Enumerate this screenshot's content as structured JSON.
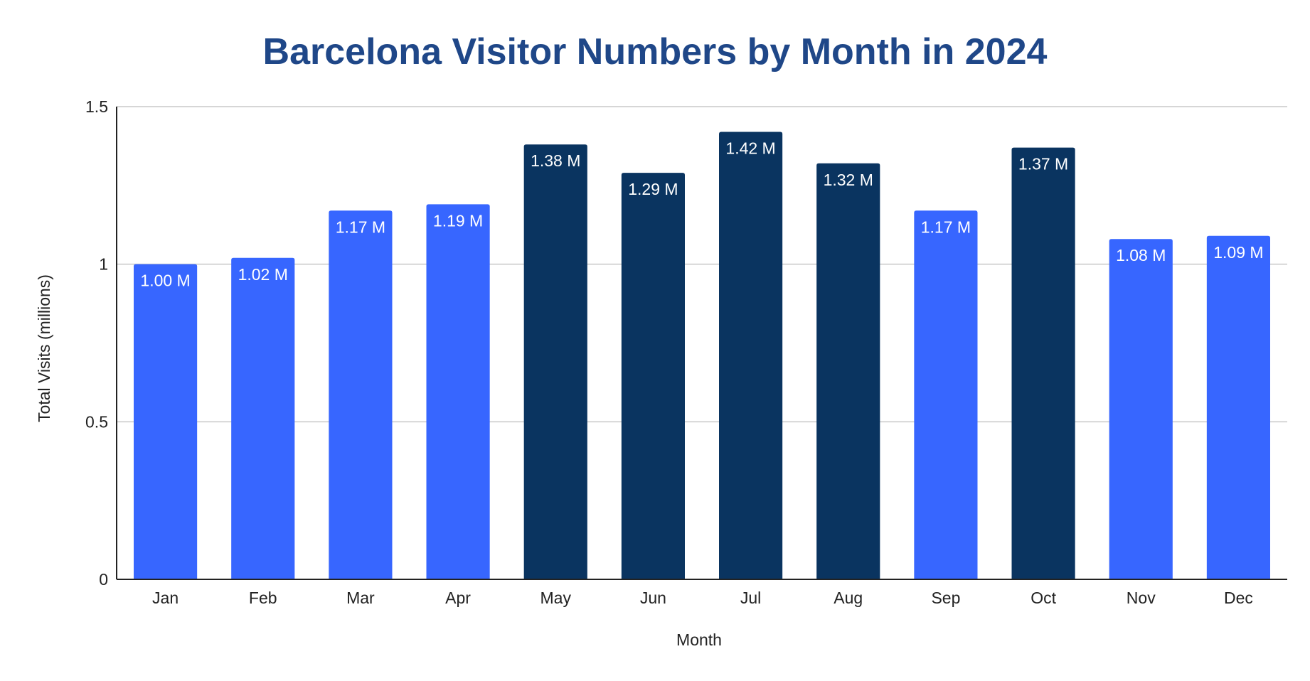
{
  "chart_data": {
    "type": "bar",
    "title": "Barcelona Visitor Numbers by Month in 2024",
    "xlabel": "Month",
    "ylabel": "Total Visits (millions)",
    "ylim": [
      0,
      1.5
    ],
    "yticks": [
      "0",
      "0.5",
      "1",
      "1.5"
    ],
    "ytick_values": [
      0,
      0.5,
      1,
      1.5
    ],
    "grid": true,
    "categories": [
      "Jan",
      "Feb",
      "Mar",
      "Apr",
      "May",
      "Jun",
      "Jul",
      "Aug",
      "Sep",
      "Oct",
      "Nov",
      "Dec"
    ],
    "values": [
      1.0,
      1.02,
      1.17,
      1.19,
      1.38,
      1.29,
      1.42,
      1.32,
      1.17,
      1.37,
      1.08,
      1.09
    ],
    "data_labels": [
      "1.00 M",
      "1.02 M",
      "1.17 M",
      "1.19 M",
      "1.38 M",
      "1.29 M",
      "1.42 M",
      "1.32 M",
      "1.17 M",
      "1.37 M",
      "1.08 M",
      "1.09 M"
    ],
    "bar_colors": [
      "#3766ff",
      "#3766ff",
      "#3766ff",
      "#3766ff",
      "#0a3460",
      "#0a3460",
      "#0a3460",
      "#0a3460",
      "#3766ff",
      "#0a3460",
      "#3766ff",
      "#3766ff"
    ]
  },
  "colors": {
    "title": "#1f4788",
    "light_bar": "#3766ff",
    "dark_bar": "#0a3460"
  }
}
